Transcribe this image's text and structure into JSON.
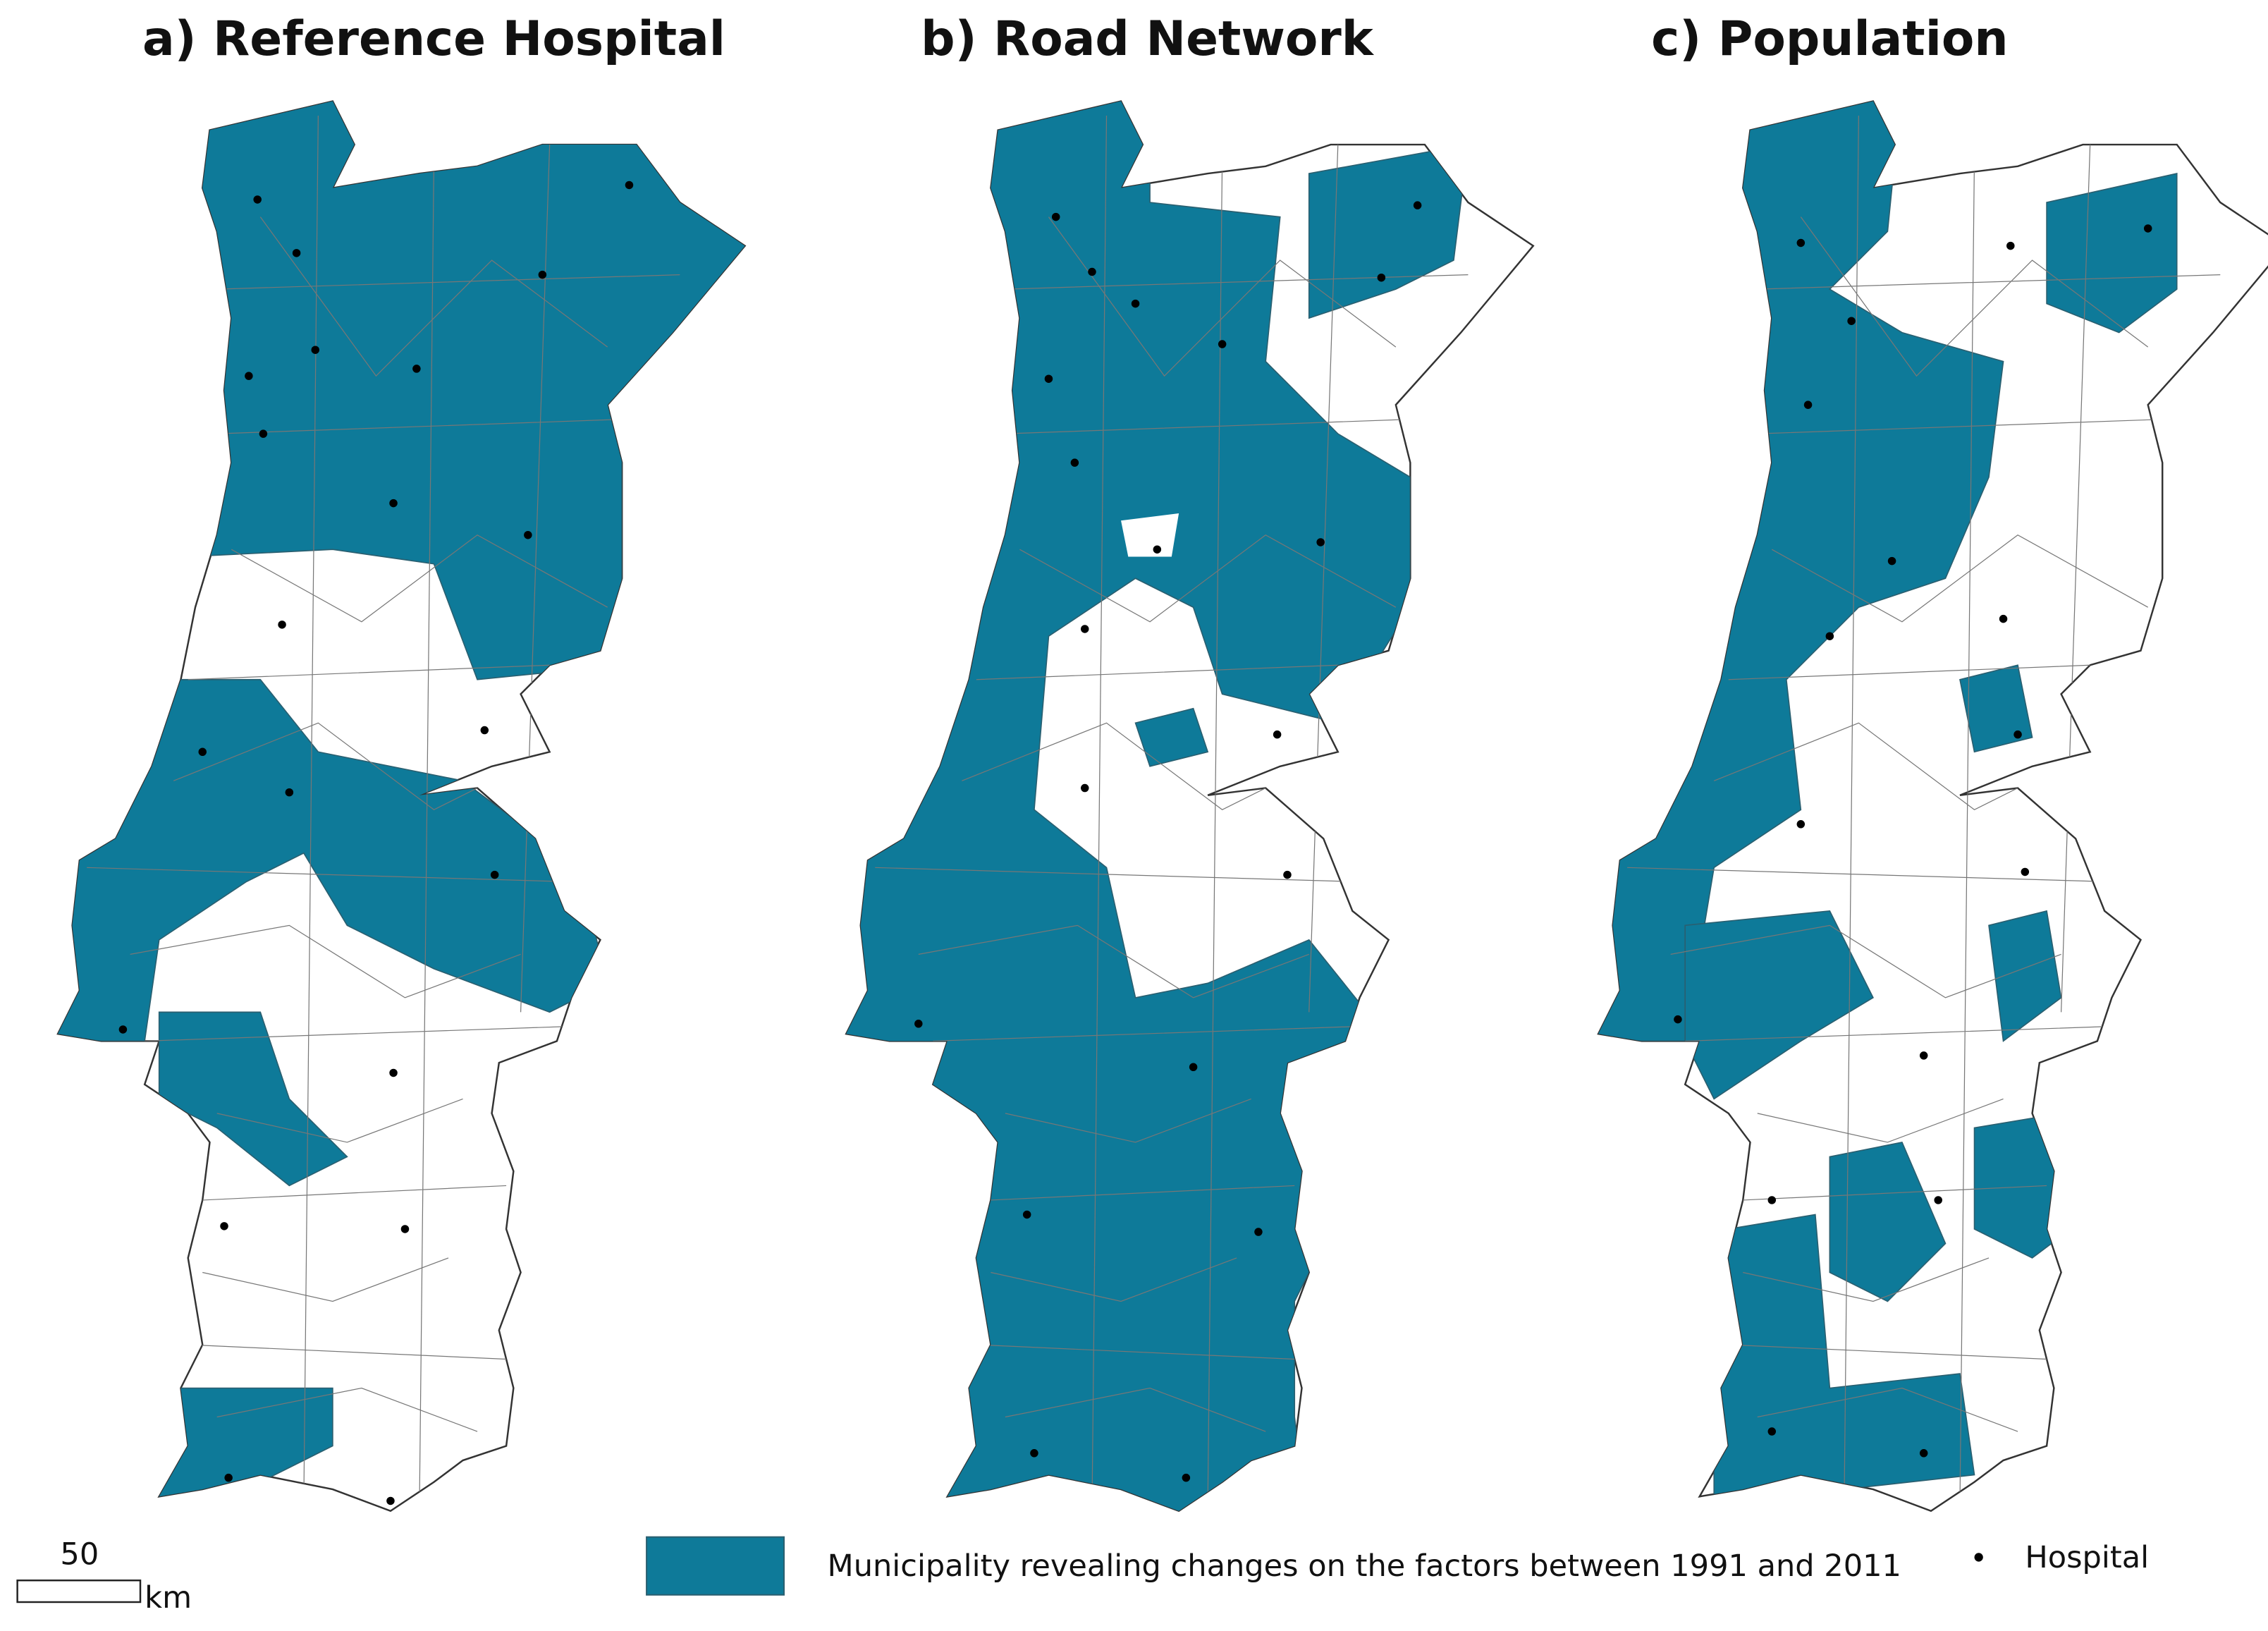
{
  "panels": [
    {
      "title": "a) Reference Hospital"
    },
    {
      "title": "b) Road Network"
    },
    {
      "title": "c) Population"
    }
  ],
  "legend": {
    "fill_label": "Municipality revealing changes on the factors between 1991 and 2011",
    "point_label": "Hospital"
  },
  "scale_bar": {
    "value": 50,
    "unit": "km"
  }
}
